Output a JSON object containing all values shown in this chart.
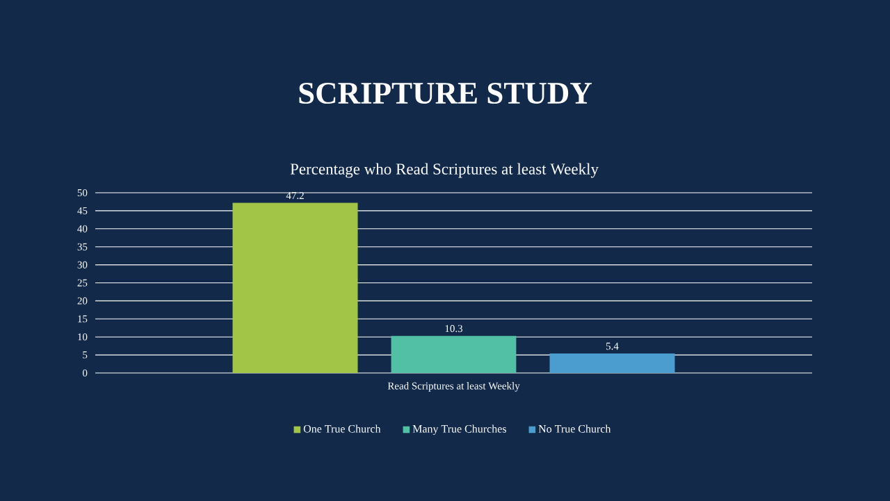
{
  "chart_data": {
    "type": "bar",
    "title": "SCRIPTURE STUDY",
    "subtitle": "Percentage who Read Scriptures at least Weekly",
    "categories": [
      "Read Scriptures at least Weekly"
    ],
    "series": [
      {
        "name": "One True Church",
        "color": "#a2c547",
        "values": [
          47.2
        ]
      },
      {
        "name": "Many True Churches",
        "color": "#52c0a5",
        "values": [
          10.3
        ]
      },
      {
        "name": "No True Church",
        "color": "#4a9dce",
        "values": [
          5.4
        ]
      }
    ],
    "ylim": [
      0,
      50
    ],
    "yticks": [
      0,
      5,
      10,
      15,
      20,
      25,
      30,
      35,
      40,
      45,
      50
    ],
    "grid": "y",
    "legend": "bottom",
    "data_labels": true
  }
}
